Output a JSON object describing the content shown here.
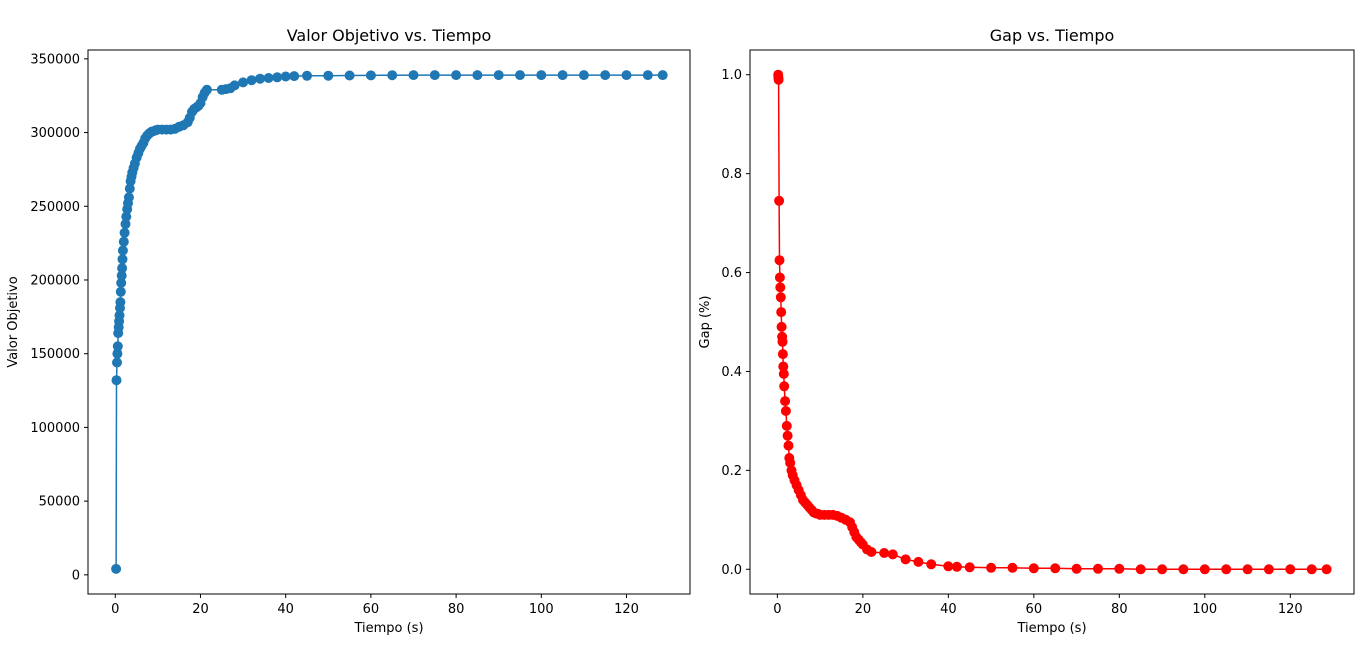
{
  "chart_data": [
    {
      "type": "line",
      "title": "Valor Objetivo vs. Tiempo",
      "xlabel": "Tiempo (s)",
      "ylabel": "Valor Objetivo",
      "xlim": [
        -6.4,
        134.9
      ],
      "ylim": [
        -13000,
        356000
      ],
      "xticks": [
        0,
        20,
        40,
        60,
        80,
        100,
        120
      ],
      "xtick_labels": [
        "0",
        "20",
        "40",
        "60",
        "80",
        "100",
        "120"
      ],
      "yticks": [
        0,
        50000,
        100000,
        150000,
        200000,
        250000,
        300000,
        350000
      ],
      "ytick_labels": [
        "0",
        "50000",
        "100000",
        "150000",
        "200000",
        "250000",
        "300000",
        "350000"
      ],
      "color": "#1f77b4",
      "marker": "circle",
      "grid": false,
      "series": [
        {
          "x": [
            0.2,
            0.3,
            0.4,
            0.5,
            0.6,
            0.7,
            0.8,
            0.9,
            1.0,
            1.1,
            1.2,
            1.3,
            1.4,
            1.5,
            1.6,
            1.7,
            1.8,
            2.0,
            2.2,
            2.4,
            2.6,
            2.8,
            3.0,
            3.2,
            3.4,
            3.6,
            3.8,
            4.0,
            4.3,
            4.6,
            5.0,
            5.4,
            5.8,
            6.2,
            6.6,
            7.0,
            7.5,
            8.0,
            8.5,
            9.0,
            9.5,
            10.0,
            11.0,
            12.0,
            13.0,
            14.0,
            15.0,
            16.0,
            17.0,
            17.5,
            18.0,
            18.5,
            19.0,
            19.5,
            20.0,
            20.5,
            21.0,
            21.5,
            25.0,
            26.0,
            27.0,
            28.0,
            30.0,
            32.0,
            34.0,
            36.0,
            38.0,
            40.0,
            42.0,
            45.0,
            50.0,
            55.0,
            60.0,
            65.0,
            70.0,
            75.0,
            80.0,
            85.0,
            90.0,
            95.0,
            100.0,
            105.0,
            110.0,
            115.0,
            120.0,
            125.0,
            128.5
          ],
          "y": [
            4000,
            132000,
            144000,
            150000,
            155000,
            164000,
            168000,
            172000,
            176000,
            181000,
            185000,
            192000,
            198000,
            203000,
            208000,
            214000,
            220000,
            226000,
            232000,
            238000,
            243000,
            248000,
            252000,
            256000,
            262000,
            267000,
            270000,
            273000,
            276000,
            279000,
            283000,
            286000,
            289000,
            291000,
            293000,
            296000,
            298000,
            299500,
            300500,
            301000,
            301500,
            302000,
            302000,
            302000,
            302000,
            302500,
            304000,
            305000,
            307000,
            310000,
            314000,
            316000,
            317000,
            318000,
            320000,
            324000,
            327000,
            329000,
            329000,
            329500,
            330000,
            332000,
            334000,
            335500,
            336500,
            337000,
            337500,
            338000,
            338300,
            338500,
            338600,
            338700,
            338800,
            338900,
            339000,
            339000,
            339000,
            339000,
            339000,
            339000,
            339000,
            339000,
            339000,
            339000,
            339000,
            339000,
            339000
          ]
        }
      ]
    },
    {
      "type": "line",
      "title": "Gap vs. Tiempo",
      "xlabel": "Tiempo (s)",
      "ylabel": "Gap (%)",
      "xlim": [
        -6.4,
        134.9
      ],
      "ylim": [
        -0.05,
        1.05
      ],
      "xticks": [
        0,
        20,
        40,
        60,
        80,
        100,
        120
      ],
      "xtick_labels": [
        "0",
        "20",
        "40",
        "60",
        "80",
        "100",
        "120"
      ],
      "yticks": [
        0.0,
        0.2,
        0.4,
        0.6,
        0.8,
        1.0
      ],
      "ytick_labels": [
        "0.0",
        "0.2",
        "0.4",
        "0.6",
        "0.8",
        "1.0"
      ],
      "color": "#ff0000",
      "marker": "circle",
      "grid": false,
      "series": [
        {
          "x": [
            0.2,
            0.25,
            0.3,
            0.4,
            0.5,
            0.6,
            0.7,
            0.8,
            0.9,
            1.0,
            1.1,
            1.2,
            1.3,
            1.4,
            1.5,
            1.6,
            1.8,
            2.0,
            2.2,
            2.4,
            2.6,
            2.8,
            3.0,
            3.3,
            3.6,
            4.0,
            4.5,
            5.0,
            5.5,
            6.0,
            6.5,
            7.0,
            7.5,
            8.0,
            8.5,
            9.0,
            9.5,
            10.0,
            11.0,
            12.0,
            13.0,
            14.0,
            15.0,
            16.0,
            17.0,
            17.5,
            18.0,
            18.5,
            19.0,
            19.5,
            20.0,
            21.0,
            22.0,
            25.0,
            27.0,
            30.0,
            33.0,
            36.0,
            40.0,
            42.0,
            45.0,
            50.0,
            55.0,
            60.0,
            65.0,
            70.0,
            75.0,
            80.0,
            85.0,
            90.0,
            95.0,
            100.0,
            105.0,
            110.0,
            115.0,
            120.0,
            125.0,
            128.5
          ],
          "y": [
            1.0,
            0.995,
            0.99,
            0.745,
            0.625,
            0.59,
            0.57,
            0.55,
            0.52,
            0.49,
            0.47,
            0.46,
            0.435,
            0.41,
            0.395,
            0.37,
            0.34,
            0.32,
            0.29,
            0.27,
            0.25,
            0.225,
            0.215,
            0.2,
            0.19,
            0.18,
            0.17,
            0.16,
            0.15,
            0.14,
            0.135,
            0.13,
            0.125,
            0.12,
            0.115,
            0.113,
            0.112,
            0.11,
            0.11,
            0.11,
            0.11,
            0.108,
            0.104,
            0.1,
            0.095,
            0.085,
            0.075,
            0.065,
            0.06,
            0.055,
            0.05,
            0.04,
            0.035,
            0.033,
            0.03,
            0.02,
            0.015,
            0.01,
            0.006,
            0.005,
            0.004,
            0.003,
            0.003,
            0.002,
            0.002,
            0.001,
            0.001,
            0.001,
            0.0,
            0.0,
            0.0,
            0.0,
            0.0,
            0.0,
            0.0,
            0.0,
            0.0,
            0.0
          ]
        }
      ]
    }
  ]
}
